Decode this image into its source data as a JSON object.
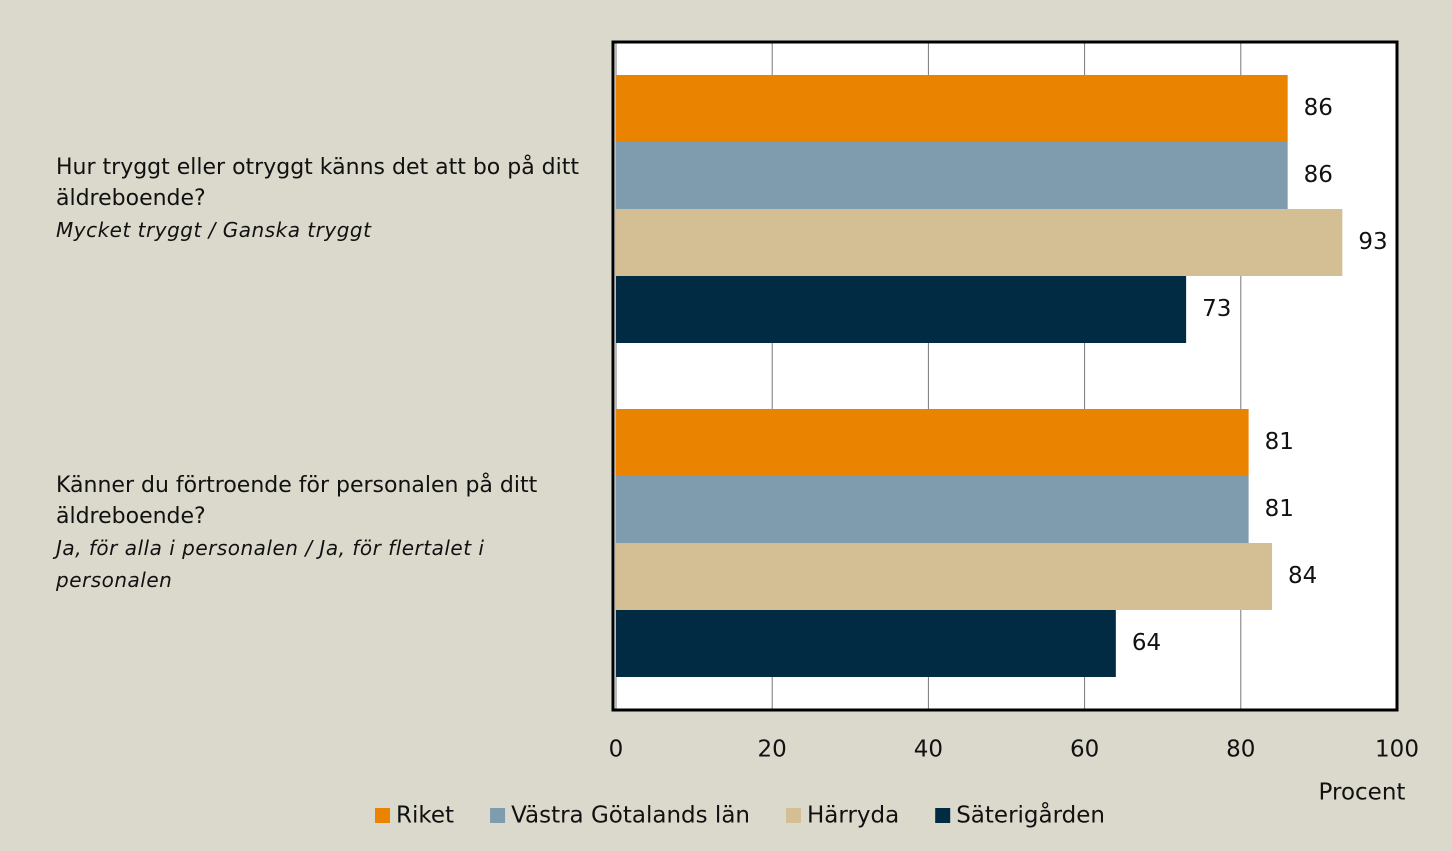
{
  "chart_data": {
    "type": "hbar",
    "categories": [
      {
        "question": "Hur tryggt eller otryggt känns det att bo på ditt äldreboende?",
        "answer": "Mycket tryggt / Ganska tryggt"
      },
      {
        "question": "Känner du förtroende för personalen på ditt äldreboende?",
        "answer": "Ja, för alla i personalen / Ja, för flertalet i personalen"
      }
    ],
    "series": [
      {
        "name": "Riket",
        "color": "#e98300",
        "values": [
          86,
          81
        ]
      },
      {
        "name": "Västra Götalands län",
        "color": "#7f9caf",
        "values": [
          86,
          81
        ]
      },
      {
        "name": "Härryda",
        "color": "#d4bf95",
        "values": [
          93,
          84
        ]
      },
      {
        "name": "Säterigården",
        "color": "#012a43",
        "values": [
          73,
          64
        ]
      }
    ],
    "xlabel": "Procent",
    "xlim": [
      0,
      100
    ],
    "xticks": [
      0,
      20,
      40,
      60,
      80,
      100
    ],
    "grid": true,
    "legend": "bottom"
  }
}
